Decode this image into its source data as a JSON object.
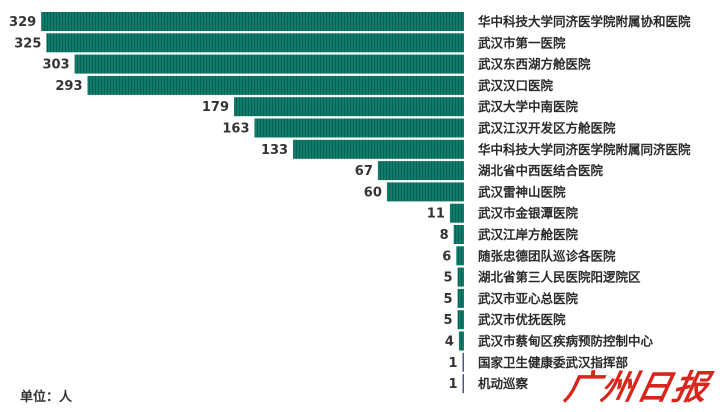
{
  "chart_data": {
    "type": "bar",
    "orientation": "horizontal",
    "title": "",
    "xlabel": "",
    "ylabel": "",
    "unit_label": "单位：人",
    "categories": [
      "华中科技大学同济医学院附属协和医院",
      "武汉市第一医院",
      "武汉东西湖方舱医院",
      "武汉汉口医院",
      "武汉大学中南医院",
      "武汉江汉开发区方舱医院",
      "华中科技大学同济医学院附属同济医院",
      "湖北省中西医结合医院",
      "武汉雷神山医院",
      "武汉市金银潭医院",
      "武汉江岸方舱医院",
      "随张忠德团队巡诊各医院",
      "湖北省第三人民医院阳逻院区",
      "武汉市亚心总医院",
      "武汉市优抚医院",
      "武汉市蔡甸区疾病预防控制中心",
      "国家卫生健康委武汉指挥部",
      "机动巡察"
    ],
    "values": [
      329,
      325,
      303,
      293,
      179,
      163,
      133,
      67,
      60,
      11,
      8,
      6,
      5,
      5,
      5,
      4,
      1,
      1
    ],
    "bar_color": "#0f7a68",
    "grid": false,
    "legend": "none"
  },
  "watermark": "广州日报"
}
